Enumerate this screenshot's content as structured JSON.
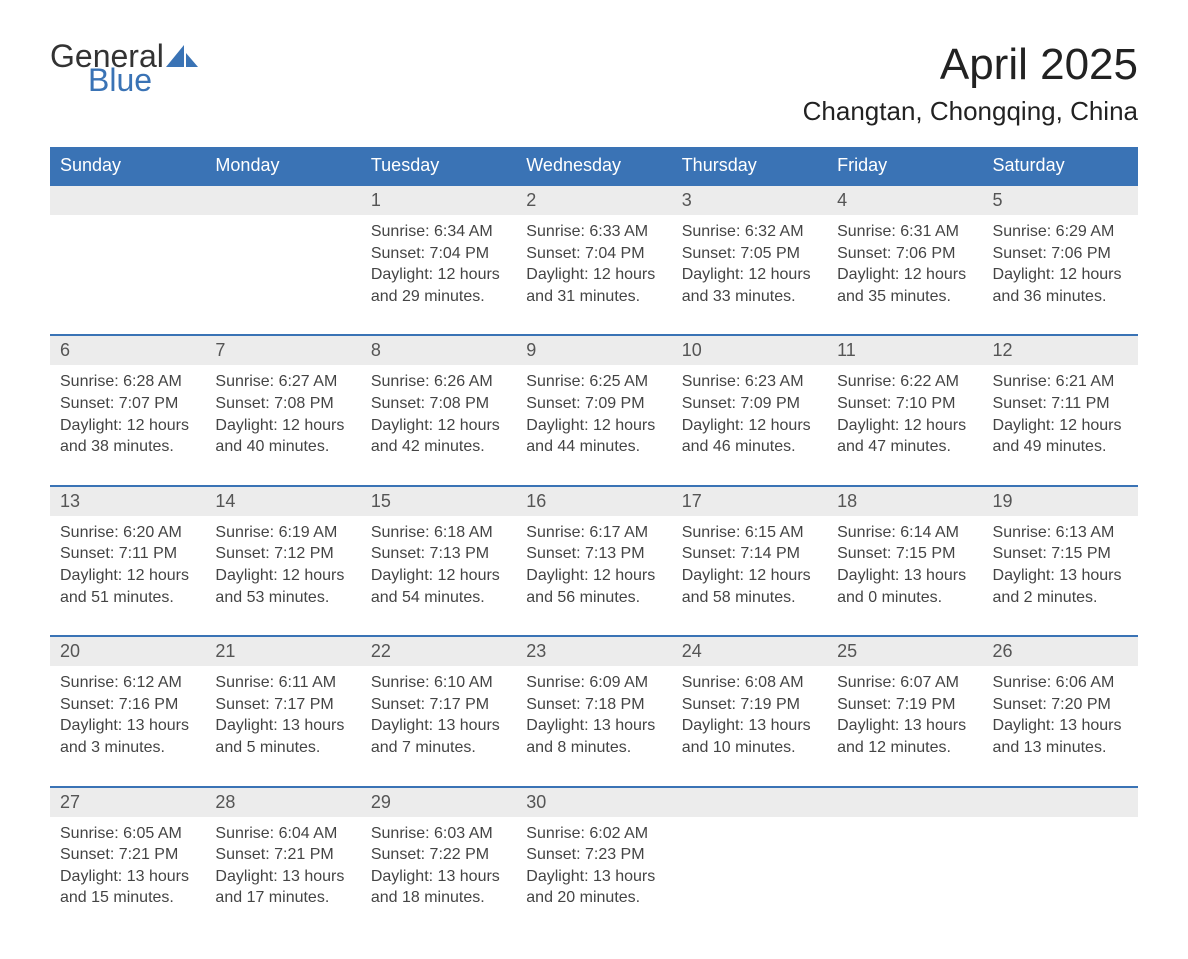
{
  "logo": {
    "text1": "General",
    "text2": "Blue"
  },
  "header": {
    "month_title": "April 2025",
    "location": "Changtan, Chongqing, China"
  },
  "style": {
    "header_bg": "#3a73b5",
    "header_fg": "#ffffff",
    "daynum_bg": "#ececec",
    "daynum_border": "#3a73b5",
    "body_bg": "#ffffff",
    "text_color": "#444444",
    "title_color": "#222222",
    "month_fontsize": 44,
    "location_fontsize": 26,
    "header_fontsize": 18,
    "daynum_fontsize": 18,
    "detail_fontsize": 16,
    "columns": 7
  },
  "days_of_week": [
    "Sunday",
    "Monday",
    "Tuesday",
    "Wednesday",
    "Thursday",
    "Friday",
    "Saturday"
  ],
  "weeks": [
    [
      null,
      null,
      {
        "n": "1",
        "sunrise": "Sunrise: 6:34 AM",
        "sunset": "Sunset: 7:04 PM",
        "d1": "Daylight: 12 hours",
        "d2": "and 29 minutes."
      },
      {
        "n": "2",
        "sunrise": "Sunrise: 6:33 AM",
        "sunset": "Sunset: 7:04 PM",
        "d1": "Daylight: 12 hours",
        "d2": "and 31 minutes."
      },
      {
        "n": "3",
        "sunrise": "Sunrise: 6:32 AM",
        "sunset": "Sunset: 7:05 PM",
        "d1": "Daylight: 12 hours",
        "d2": "and 33 minutes."
      },
      {
        "n": "4",
        "sunrise": "Sunrise: 6:31 AM",
        "sunset": "Sunset: 7:06 PM",
        "d1": "Daylight: 12 hours",
        "d2": "and 35 minutes."
      },
      {
        "n": "5",
        "sunrise": "Sunrise: 6:29 AM",
        "sunset": "Sunset: 7:06 PM",
        "d1": "Daylight: 12 hours",
        "d2": "and 36 minutes."
      }
    ],
    [
      {
        "n": "6",
        "sunrise": "Sunrise: 6:28 AM",
        "sunset": "Sunset: 7:07 PM",
        "d1": "Daylight: 12 hours",
        "d2": "and 38 minutes."
      },
      {
        "n": "7",
        "sunrise": "Sunrise: 6:27 AM",
        "sunset": "Sunset: 7:08 PM",
        "d1": "Daylight: 12 hours",
        "d2": "and 40 minutes."
      },
      {
        "n": "8",
        "sunrise": "Sunrise: 6:26 AM",
        "sunset": "Sunset: 7:08 PM",
        "d1": "Daylight: 12 hours",
        "d2": "and 42 minutes."
      },
      {
        "n": "9",
        "sunrise": "Sunrise: 6:25 AM",
        "sunset": "Sunset: 7:09 PM",
        "d1": "Daylight: 12 hours",
        "d2": "and 44 minutes."
      },
      {
        "n": "10",
        "sunrise": "Sunrise: 6:23 AM",
        "sunset": "Sunset: 7:09 PM",
        "d1": "Daylight: 12 hours",
        "d2": "and 46 minutes."
      },
      {
        "n": "11",
        "sunrise": "Sunrise: 6:22 AM",
        "sunset": "Sunset: 7:10 PM",
        "d1": "Daylight: 12 hours",
        "d2": "and 47 minutes."
      },
      {
        "n": "12",
        "sunrise": "Sunrise: 6:21 AM",
        "sunset": "Sunset: 7:11 PM",
        "d1": "Daylight: 12 hours",
        "d2": "and 49 minutes."
      }
    ],
    [
      {
        "n": "13",
        "sunrise": "Sunrise: 6:20 AM",
        "sunset": "Sunset: 7:11 PM",
        "d1": "Daylight: 12 hours",
        "d2": "and 51 minutes."
      },
      {
        "n": "14",
        "sunrise": "Sunrise: 6:19 AM",
        "sunset": "Sunset: 7:12 PM",
        "d1": "Daylight: 12 hours",
        "d2": "and 53 minutes."
      },
      {
        "n": "15",
        "sunrise": "Sunrise: 6:18 AM",
        "sunset": "Sunset: 7:13 PM",
        "d1": "Daylight: 12 hours",
        "d2": "and 54 minutes."
      },
      {
        "n": "16",
        "sunrise": "Sunrise: 6:17 AM",
        "sunset": "Sunset: 7:13 PM",
        "d1": "Daylight: 12 hours",
        "d2": "and 56 minutes."
      },
      {
        "n": "17",
        "sunrise": "Sunrise: 6:15 AM",
        "sunset": "Sunset: 7:14 PM",
        "d1": "Daylight: 12 hours",
        "d2": "and 58 minutes."
      },
      {
        "n": "18",
        "sunrise": "Sunrise: 6:14 AM",
        "sunset": "Sunset: 7:15 PM",
        "d1": "Daylight: 13 hours",
        "d2": "and 0 minutes."
      },
      {
        "n": "19",
        "sunrise": "Sunrise: 6:13 AM",
        "sunset": "Sunset: 7:15 PM",
        "d1": "Daylight: 13 hours",
        "d2": "and 2 minutes."
      }
    ],
    [
      {
        "n": "20",
        "sunrise": "Sunrise: 6:12 AM",
        "sunset": "Sunset: 7:16 PM",
        "d1": "Daylight: 13 hours",
        "d2": "and 3 minutes."
      },
      {
        "n": "21",
        "sunrise": "Sunrise: 6:11 AM",
        "sunset": "Sunset: 7:17 PM",
        "d1": "Daylight: 13 hours",
        "d2": "and 5 minutes."
      },
      {
        "n": "22",
        "sunrise": "Sunrise: 6:10 AM",
        "sunset": "Sunset: 7:17 PM",
        "d1": "Daylight: 13 hours",
        "d2": "and 7 minutes."
      },
      {
        "n": "23",
        "sunrise": "Sunrise: 6:09 AM",
        "sunset": "Sunset: 7:18 PM",
        "d1": "Daylight: 13 hours",
        "d2": "and 8 minutes."
      },
      {
        "n": "24",
        "sunrise": "Sunrise: 6:08 AM",
        "sunset": "Sunset: 7:19 PM",
        "d1": "Daylight: 13 hours",
        "d2": "and 10 minutes."
      },
      {
        "n": "25",
        "sunrise": "Sunrise: 6:07 AM",
        "sunset": "Sunset: 7:19 PM",
        "d1": "Daylight: 13 hours",
        "d2": "and 12 minutes."
      },
      {
        "n": "26",
        "sunrise": "Sunrise: 6:06 AM",
        "sunset": "Sunset: 7:20 PM",
        "d1": "Daylight: 13 hours",
        "d2": "and 13 minutes."
      }
    ],
    [
      {
        "n": "27",
        "sunrise": "Sunrise: 6:05 AM",
        "sunset": "Sunset: 7:21 PM",
        "d1": "Daylight: 13 hours",
        "d2": "and 15 minutes."
      },
      {
        "n": "28",
        "sunrise": "Sunrise: 6:04 AM",
        "sunset": "Sunset: 7:21 PM",
        "d1": "Daylight: 13 hours",
        "d2": "and 17 minutes."
      },
      {
        "n": "29",
        "sunrise": "Sunrise: 6:03 AM",
        "sunset": "Sunset: 7:22 PM",
        "d1": "Daylight: 13 hours",
        "d2": "and 18 minutes."
      },
      {
        "n": "30",
        "sunrise": "Sunrise: 6:02 AM",
        "sunset": "Sunset: 7:23 PM",
        "d1": "Daylight: 13 hours",
        "d2": "and 20 minutes."
      },
      null,
      null,
      null
    ]
  ]
}
